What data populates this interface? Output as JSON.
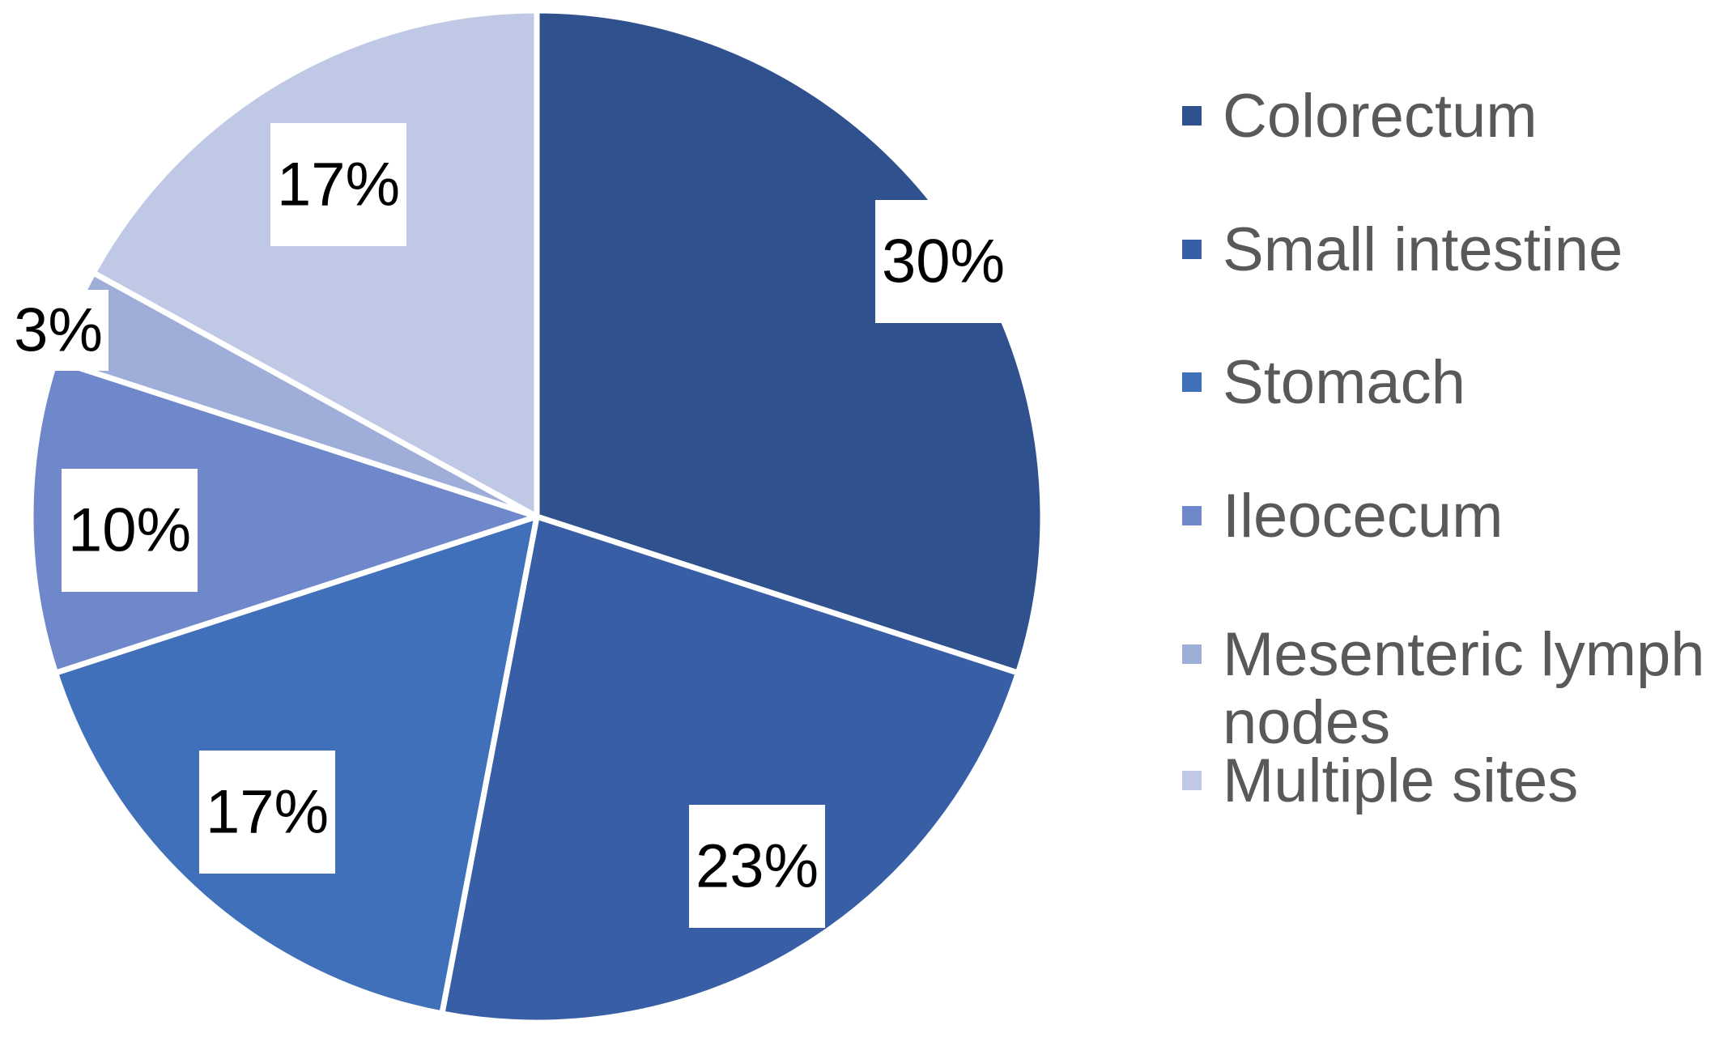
{
  "chart_data": {
    "type": "pie",
    "title": "",
    "legend_position": "right",
    "start_angle_deg": 0,
    "direction": "clockwise",
    "slices": [
      {
        "label": "Colorectum",
        "legend_lines": [
          "Colorectum"
        ],
        "value": 30,
        "display": "30%",
        "color": "#2f528f"
      },
      {
        "label": "Small intestine",
        "legend_lines": [
          "Small intestine"
        ],
        "value": 23,
        "display": "23%",
        "color": "#385fa6"
      },
      {
        "label": "Stomach",
        "legend_lines": [
          "Stomach"
        ],
        "value": 17,
        "display": "17%",
        "color": "#4170bb"
      },
      {
        "label": "Ileocecum",
        "legend_lines": [
          "Ileocecum"
        ],
        "value": 10,
        "display": "10%",
        "color": "#6e88cb"
      },
      {
        "label": "Mesenteric lymph nodes",
        "legend_lines": [
          "Mesenteric lymph",
          "nodes"
        ],
        "value": 3,
        "display": "3%",
        "color": "#9eaed8"
      },
      {
        "label": "Multiple sites",
        "legend_lines": [
          "Multiple sites"
        ],
        "value": 17,
        "display": "17%",
        "color": "#bfc9e5"
      }
    ]
  }
}
